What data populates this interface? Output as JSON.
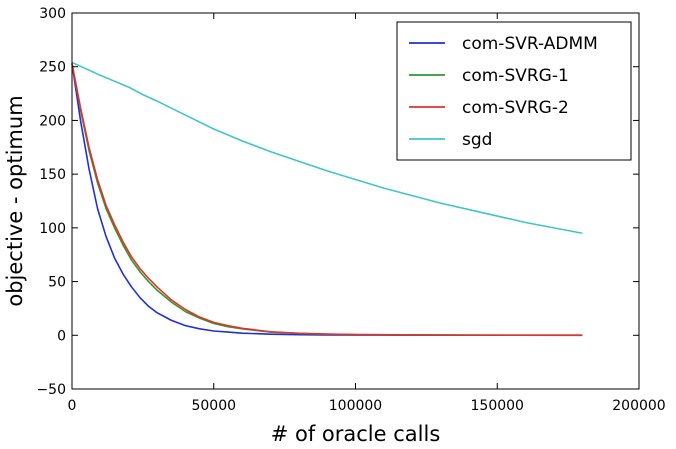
{
  "chart_data": {
    "type": "line",
    "title": "",
    "xlabel": "# of oracle calls",
    "ylabel": "objective - optimum",
    "xlim": [
      0,
      200000
    ],
    "ylim": [
      -50,
      300
    ],
    "xticks": [
      0,
      50000,
      100000,
      150000,
      200000
    ],
    "yticks": [
      -50,
      0,
      50,
      100,
      150,
      200,
      250,
      300
    ],
    "xtick_labels": [
      "0",
      "50000",
      "100000",
      "150000",
      "200000"
    ],
    "ytick_labels": [
      "−50",
      "0",
      "50",
      "100",
      "150",
      "200",
      "250",
      "300"
    ],
    "grid": false,
    "legend_position": "top-right",
    "series": [
      {
        "name": "com-SVR-ADMM",
        "color": "#1f2fd9",
        "x": [
          0,
          3000,
          6000,
          9000,
          12000,
          15000,
          18000,
          21000,
          24000,
          27000,
          30000,
          35000,
          40000,
          45000,
          50000,
          55000,
          60000,
          70000,
          80000,
          90000,
          100000,
          120000,
          140000,
          160000,
          180000
        ],
        "y": [
          253,
          200,
          155,
          118,
          92,
          72,
          57,
          45,
          35,
          27,
          21,
          14,
          9,
          6,
          4,
          3,
          2,
          1,
          0.5,
          0.3,
          0.2,
          0.1,
          0.05,
          0.02,
          0.01
        ]
      },
      {
        "name": "com-SVRG-1",
        "color": "#2e9a2e",
        "x": [
          0,
          3000,
          6000,
          9000,
          12000,
          15000,
          18000,
          21000,
          24000,
          27000,
          30000,
          35000,
          40000,
          45000,
          50000,
          55000,
          60000,
          70000,
          80000,
          90000,
          100000,
          120000,
          140000,
          160000,
          180000
        ],
        "y": [
          253,
          210,
          172,
          142,
          118,
          100,
          84,
          70,
          59,
          50,
          42,
          31,
          22,
          16,
          11,
          8,
          6,
          3,
          1.7,
          1,
          0.6,
          0.3,
          0.15,
          0.1,
          0.05
        ]
      },
      {
        "name": "com-SVRG-2",
        "color": "#e0322f",
        "x": [
          0,
          3000,
          6000,
          9000,
          12000,
          15000,
          18000,
          21000,
          24000,
          27000,
          30000,
          35000,
          40000,
          45000,
          50000,
          55000,
          60000,
          70000,
          80000,
          90000,
          100000,
          120000,
          140000,
          160000,
          180000
        ],
        "y": [
          253,
          212,
          175,
          145,
          121,
          103,
          87,
          73,
          62,
          53,
          45,
          33,
          24,
          17,
          12,
          9,
          6.5,
          3.3,
          1.9,
          1.1,
          0.7,
          0.3,
          0.15,
          0.1,
          0.05
        ]
      },
      {
        "name": "sgd",
        "color": "#3fc6c6",
        "x": [
          0,
          10000,
          20000,
          25000,
          30000,
          40000,
          50000,
          60000,
          70000,
          80000,
          90000,
          100000,
          110000,
          120000,
          130000,
          140000,
          150000,
          160000,
          170000,
          180000
        ],
        "y": [
          254,
          242,
          231,
          224,
          218,
          205,
          192,
          181,
          171,
          162,
          153,
          145,
          137,
          130,
          123,
          117,
          111,
          105,
          100,
          95
        ]
      }
    ]
  }
}
